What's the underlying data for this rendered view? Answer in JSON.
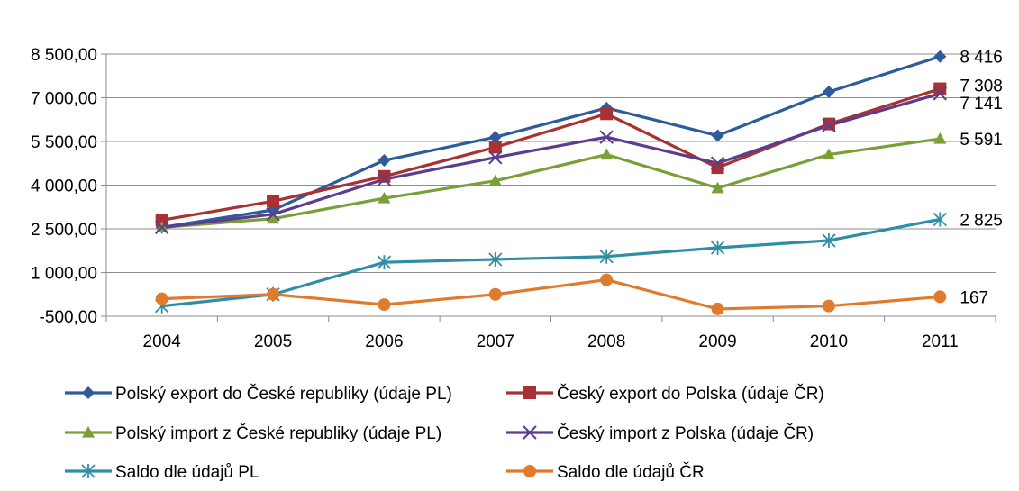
{
  "chart_data": {
    "type": "line",
    "categories": [
      "2004",
      "2005",
      "2006",
      "2007",
      "2008",
      "2009",
      "2010",
      "2011"
    ],
    "ylim": [
      -500,
      8500
    ],
    "yticks": [
      -500,
      1000,
      2500,
      4000,
      5500,
      7000,
      8500
    ],
    "ytick_labels": [
      "-500,00",
      "1 000,00",
      "2 500,00",
      "4 000,00",
      "5 500,00",
      "7 000,00",
      "8 500,00"
    ],
    "grid": true,
    "legend_position": "bottom",
    "series": [
      {
        "name": "Polský export do České republiky (údaje PL)",
        "color": "#2E5B9A",
        "marker": "diamond",
        "values": [
          2550,
          3150,
          4850,
          5650,
          6650,
          5700,
          7200,
          8416
        ],
        "end_label": "8 416"
      },
      {
        "name": "Český export do Polska (údaje ČR)",
        "color": "#A83232",
        "marker": "square",
        "values": [
          2800,
          3450,
          4300,
          5300,
          6450,
          4600,
          6100,
          7308
        ],
        "end_label": "7 308"
      },
      {
        "name": "Polský import z České republiky (údaje PL)",
        "color": "#78A036",
        "marker": "triangle",
        "values": [
          2550,
          2850,
          3550,
          4150,
          5050,
          3900,
          5050,
          5591
        ],
        "end_label": "5 591"
      },
      {
        "name": "Český import z Polska (údaje ČR)",
        "color": "#5B3C8E",
        "marker": "x",
        "values": [
          2550,
          3000,
          4200,
          4950,
          5650,
          4750,
          6050,
          7141
        ],
        "end_label": "7 141"
      },
      {
        "name": "Saldo dle údajů PL",
        "color": "#2F8EA6",
        "marker": "asterisk",
        "values": [
          -150,
          250,
          1350,
          1450,
          1550,
          1850,
          2100,
          2825
        ],
        "end_label": "2 825"
      },
      {
        "name": "Saldo dle údajů ČR",
        "color": "#E07B2E",
        "marker": "circle",
        "values": [
          100,
          250,
          -100,
          250,
          750,
          -250,
          -150,
          167
        ],
        "end_label": "167"
      }
    ]
  }
}
